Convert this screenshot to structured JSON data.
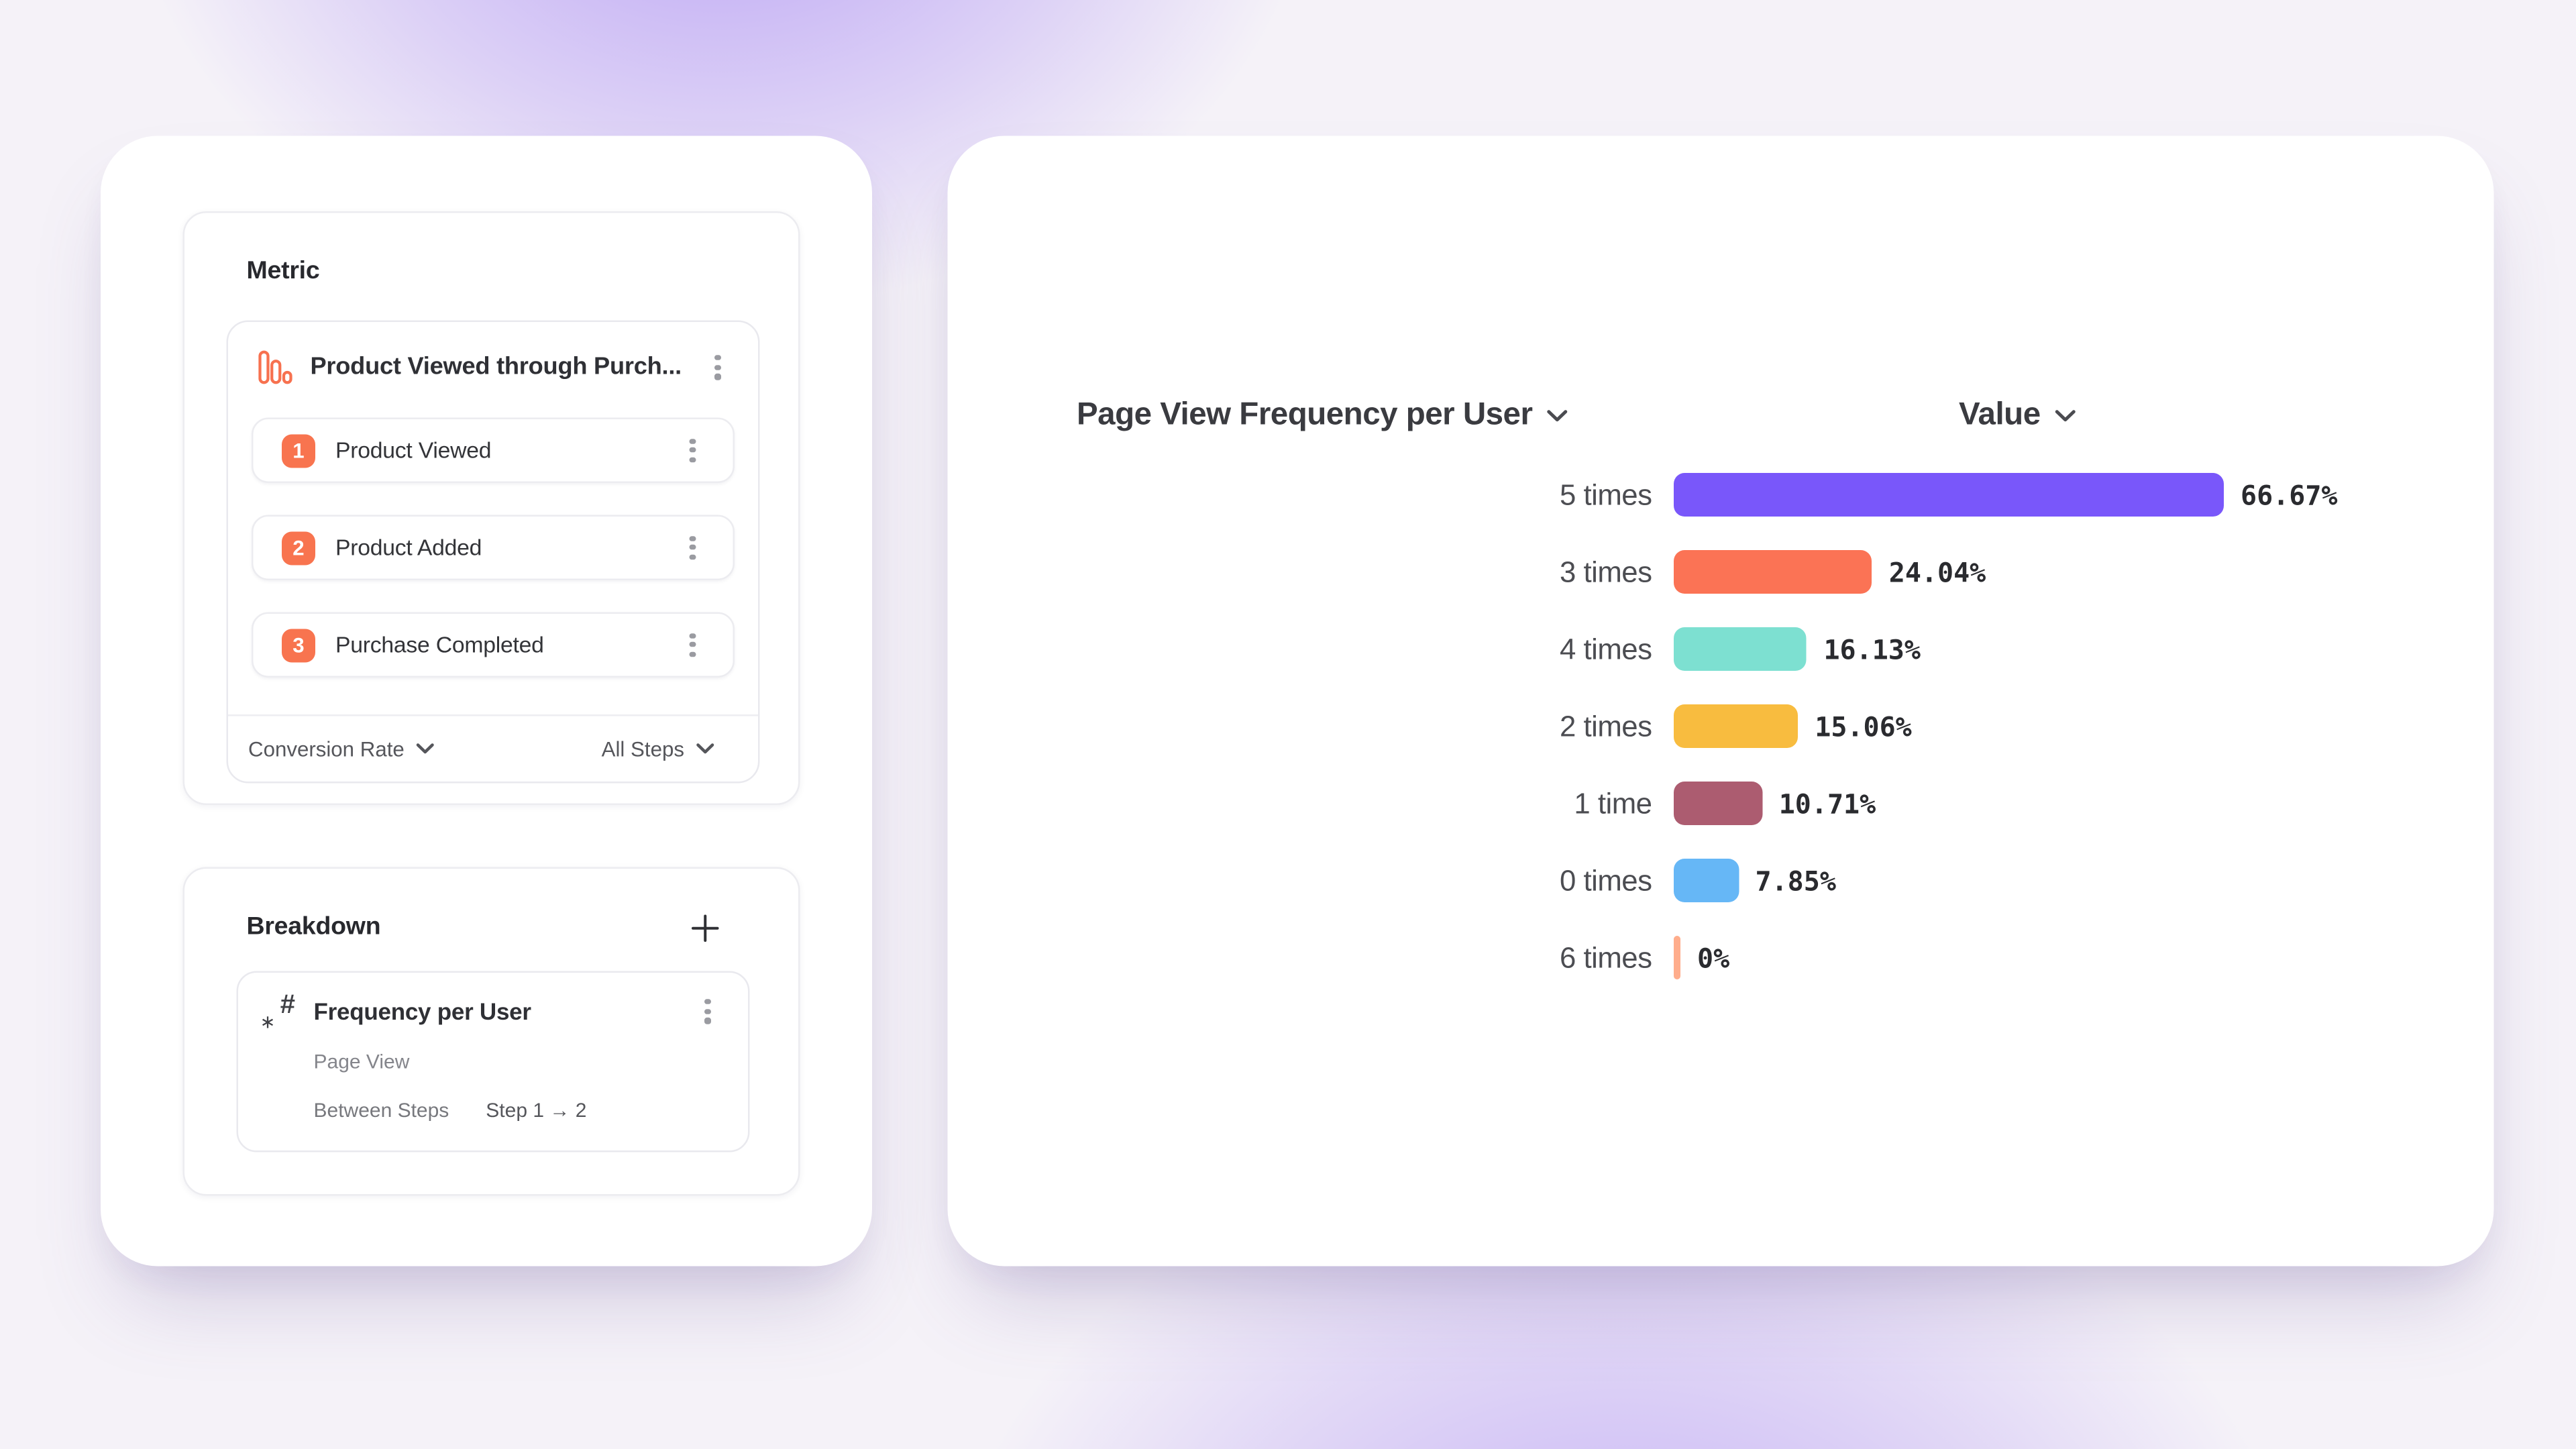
{
  "metric_panel": {
    "title": "Metric",
    "funnel": {
      "title": "Product Viewed through Purch...",
      "steps": [
        {
          "number": "1",
          "label": "Product Viewed"
        },
        {
          "number": "2",
          "label": "Product Added"
        },
        {
          "number": "3",
          "label": "Purchase Completed"
        }
      ],
      "conversion_label": "Conversion Rate",
      "steps_filter_label": "All Steps"
    }
  },
  "breakdown_panel": {
    "title": "Breakdown",
    "add_label": "+",
    "item": {
      "title": "Frequency per User",
      "event_name": "Page View",
      "scope_label": "Between Steps",
      "scope_value": "Step 1 → 2"
    }
  },
  "chart_data": {
    "type": "bar",
    "orientation": "horizontal",
    "title": "Page View Frequency per User",
    "value_column_label": "Value",
    "categories": [
      "5 times",
      "3 times",
      "4 times",
      "2 times",
      "1 time",
      "0 times",
      "6 times"
    ],
    "values": [
      66.67,
      24.04,
      16.13,
      15.06,
      10.71,
      7.85,
      0
    ],
    "value_labels": [
      "66.67%",
      "24.04%",
      "16.13%",
      "15.06%",
      "10.71%",
      "7.85%",
      "0%"
    ],
    "bar_colors": [
      "#7957FA",
      "#FB7355",
      "#7DE0D1",
      "#F8BC3F",
      "#AC5C70",
      "#66B7F6",
      "#FFAD8C"
    ],
    "axis": {
      "min": 0,
      "max_bar_value": 66.67
    },
    "grid": "off",
    "legend": "none"
  },
  "colors": {
    "accent_orange": "#F8744F",
    "background_purple": "#8F69F0"
  }
}
